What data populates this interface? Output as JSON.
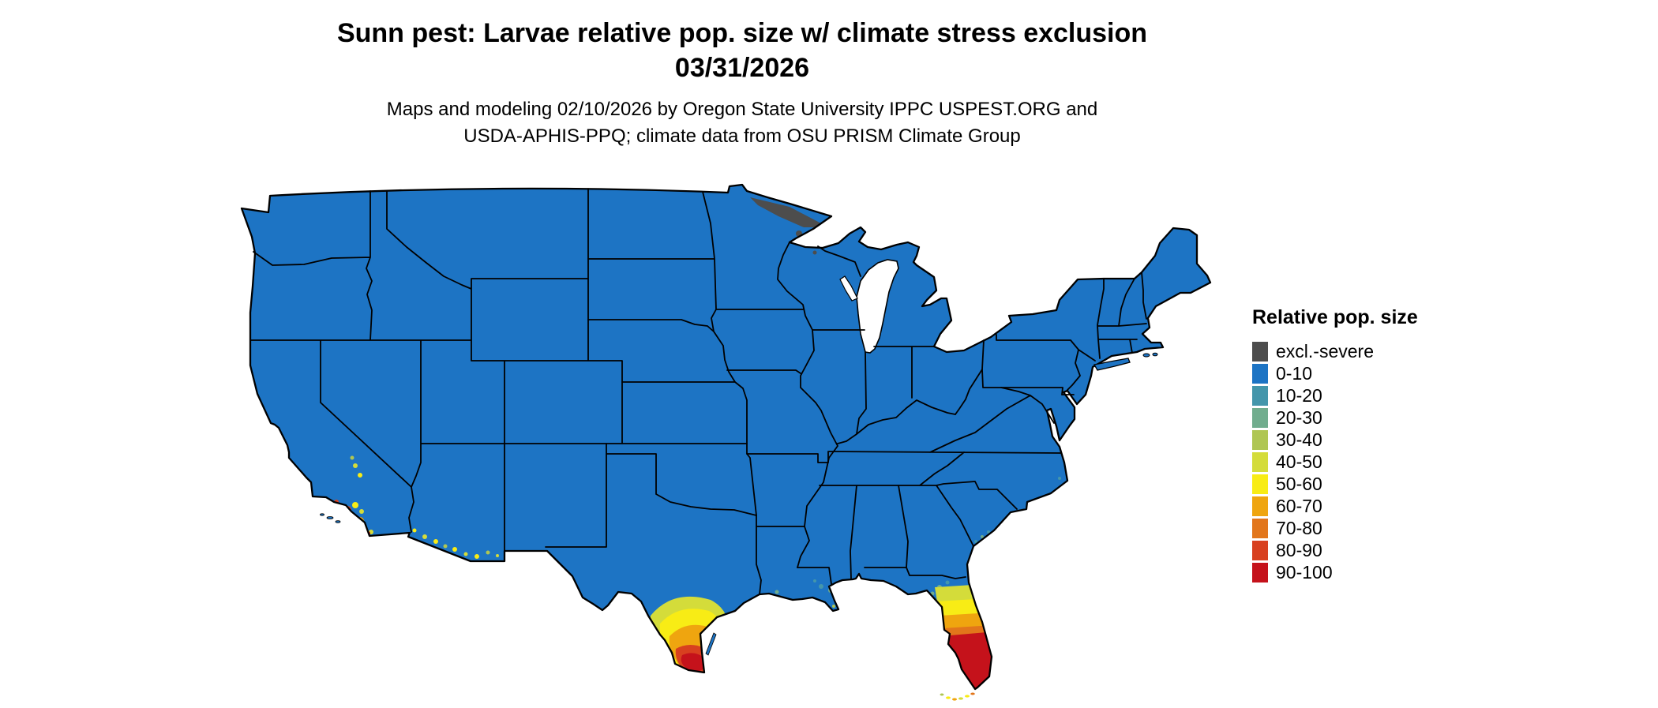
{
  "title": {
    "line1": "Sunn pest: Larvae relative pop. size w/ climate stress exclusion",
    "line2": "03/31/2026"
  },
  "subtitle": {
    "line1": "Maps and modeling 02/10/2026 by Oregon State University IPPC USPEST.ORG and",
    "line2": "USDA-APHIS-PPQ; climate data from OSU PRISM Climate Group"
  },
  "legend": {
    "title": "Relative pop. size",
    "items": [
      {
        "label": "excl.-severe",
        "color": "#4d4d4d"
      },
      {
        "label": "0-10",
        "color": "#1d74c4"
      },
      {
        "label": "10-20",
        "color": "#4496ab"
      },
      {
        "label": "20-30",
        "color": "#71ad8e"
      },
      {
        "label": "30-40",
        "color": "#afc653"
      },
      {
        "label": "40-50",
        "color": "#d4dc3a"
      },
      {
        "label": "50-60",
        "color": "#f8ec15"
      },
      {
        "label": "60-70",
        "color": "#efa50f"
      },
      {
        "label": "70-80",
        "color": "#e2761b"
      },
      {
        "label": "80-90",
        "color": "#d8401f"
      },
      {
        "label": "90-100",
        "color": "#c5121b"
      }
    ]
  },
  "map": {
    "border_color": "#000000",
    "water_color": "#ffffff",
    "background": "#ffffff"
  }
}
